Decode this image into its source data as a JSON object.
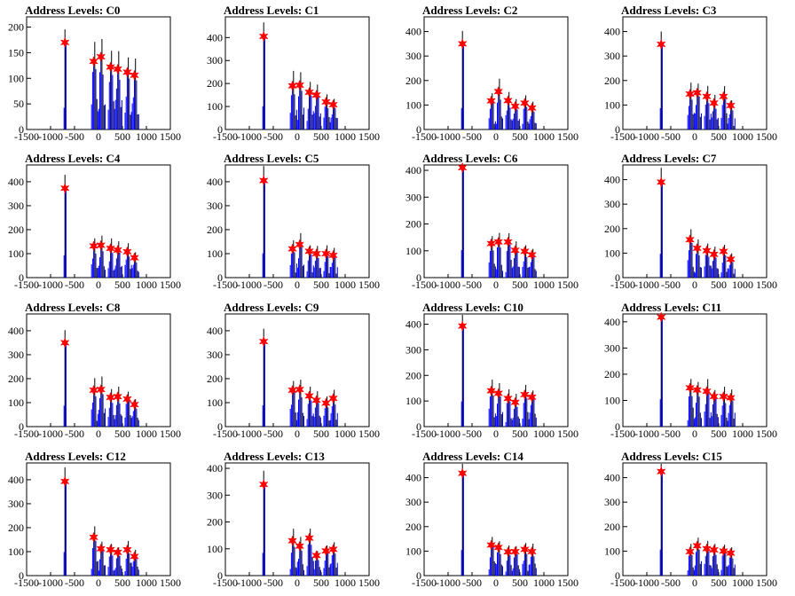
{
  "colors": {
    "histogram_main": "#0000ff",
    "histogram_dark": "#000000",
    "marker": "#ff0000",
    "frame": "#000000"
  },
  "x_ticks": [
    -1500,
    -1000,
    -500,
    0,
    500,
    1000,
    1500
  ],
  "xlim": [
    -1500,
    1500
  ],
  "chart_data": [
    {
      "type": "bar",
      "title": "Address Levels: C0",
      "xlim": [
        -1500,
        1500
      ],
      "ylim": [
        0,
        220
      ],
      "yticks": [
        0,
        50,
        100,
        150,
        200
      ],
      "series": [
        {
          "name": "",
          "x": [
            -700,
            -100,
            50,
            250,
            400,
            600,
            750
          ],
          "values": [
            170,
            133,
            142,
            122,
            118,
            112,
            106
          ]
        }
      ]
    },
    {
      "type": "bar",
      "title": "Address Levels: C1",
      "xlim": [
        -1500,
        1500
      ],
      "ylim": [
        0,
        490
      ],
      "yticks": [
        0,
        100,
        200,
        300,
        400
      ],
      "series": [
        {
          "name": "",
          "x": [
            -700,
            -100,
            50,
            250,
            400,
            600,
            750
          ],
          "values": [
            405,
            190,
            193,
            162,
            150,
            120,
            108
          ]
        }
      ]
    },
    {
      "type": "bar",
      "title": "Address Levels: C2",
      "xlim": [
        -1500,
        1500
      ],
      "ylim": [
        0,
        460
      ],
      "yticks": [
        0,
        100,
        200,
        300,
        400
      ],
      "series": [
        {
          "name": "",
          "x": [
            -700,
            -100,
            50,
            250,
            400,
            600,
            750
          ],
          "values": [
            350,
            117,
            155,
            118,
            95,
            108,
            88
          ]
        }
      ]
    },
    {
      "type": "bar",
      "title": "Address Levels: C3",
      "xlim": [
        -1500,
        1500
      ],
      "ylim": [
        0,
        460
      ],
      "yticks": [
        0,
        100,
        200,
        300,
        400
      ],
      "series": [
        {
          "name": "",
          "x": [
            -700,
            -100,
            50,
            250,
            400,
            600,
            750
          ],
          "values": [
            348,
            145,
            150,
            135,
            108,
            135,
            98
          ]
        }
      ]
    },
    {
      "type": "bar",
      "title": "Address Levels: C4",
      "xlim": [
        -1500,
        1500
      ],
      "ylim": [
        0,
        470
      ],
      "yticks": [
        0,
        100,
        200,
        300,
        400
      ],
      "series": [
        {
          "name": "",
          "x": [
            -700,
            -100,
            50,
            250,
            400,
            600,
            750
          ],
          "values": [
            373,
            132,
            135,
            122,
            115,
            108,
            83
          ]
        }
      ]
    },
    {
      "type": "bar",
      "title": "Address Levels: C5",
      "xlim": [
        -1500,
        1500
      ],
      "ylim": [
        0,
        470
      ],
      "yticks": [
        0,
        100,
        200,
        300,
        400
      ],
      "series": [
        {
          "name": "",
          "x": [
            -700,
            -100,
            50,
            250,
            400,
            600,
            750
          ],
          "values": [
            405,
            120,
            138,
            110,
            100,
            100,
            93
          ]
        }
      ]
    },
    {
      "type": "bar",
      "title": "Address Levels: C6",
      "xlim": [
        -1500,
        1500
      ],
      "ylim": [
        0,
        420
      ],
      "yticks": [
        0,
        100,
        200,
        300,
        400
      ],
      "series": [
        {
          "name": "",
          "x": [
            -700,
            -100,
            50,
            250,
            400,
            600,
            750
          ],
          "values": [
            410,
            127,
            133,
            133,
            102,
            98,
            85
          ]
        }
      ]
    },
    {
      "type": "bar",
      "title": "Address Levels: C7",
      "xlim": [
        -1500,
        1500
      ],
      "ylim": [
        0,
        460
      ],
      "yticks": [
        0,
        100,
        200,
        300,
        400
      ],
      "series": [
        {
          "name": "",
          "x": [
            -700,
            -100,
            50,
            250,
            400,
            600,
            750
          ],
          "values": [
            390,
            155,
            120,
            110,
            95,
            107,
            75
          ]
        }
      ]
    },
    {
      "type": "bar",
      "title": "Address Levels: C8",
      "xlim": [
        -1500,
        1500
      ],
      "ylim": [
        0,
        470
      ],
      "yticks": [
        0,
        100,
        200,
        300,
        400
      ],
      "series": [
        {
          "name": "",
          "x": [
            -700,
            -100,
            50,
            250,
            400,
            600,
            750
          ],
          "values": [
            350,
            152,
            155,
            122,
            125,
            115,
            92
          ]
        }
      ]
    },
    {
      "type": "bar",
      "title": "Address Levels: C9",
      "xlim": [
        -1500,
        1500
      ],
      "ylim": [
        0,
        470
      ],
      "yticks": [
        0,
        100,
        200,
        300,
        400
      ],
      "series": [
        {
          "name": "",
          "x": [
            -700,
            -100,
            50,
            250,
            400,
            600,
            750
          ],
          "values": [
            355,
            152,
            155,
            128,
            110,
            98,
            118
          ]
        }
      ]
    },
    {
      "type": "bar",
      "title": "Address Levels: C10",
      "xlim": [
        -1500,
        1500
      ],
      "ylim": [
        0,
        440
      ],
      "yticks": [
        0,
        100,
        200,
        300,
        400
      ],
      "series": [
        {
          "name": "",
          "x": [
            -700,
            -100,
            50,
            250,
            400,
            600,
            750
          ],
          "values": [
            393,
            140,
            130,
            110,
            95,
            125,
            115
          ]
        }
      ]
    },
    {
      "type": "bar",
      "title": "Address Levels: C11",
      "xlim": [
        -1500,
        1500
      ],
      "ylim": [
        0,
        430
      ],
      "yticks": [
        0,
        100,
        200,
        300,
        400
      ],
      "series": [
        {
          "name": "",
          "x": [
            -700,
            -100,
            50,
            250,
            400,
            600,
            750
          ],
          "values": [
            418,
            148,
            140,
            135,
            115,
            115,
            110
          ]
        }
      ]
    },
    {
      "type": "bar",
      "title": "Address Levels: C12",
      "xlim": [
        -1500,
        1500
      ],
      "ylim": [
        0,
        470
      ],
      "yticks": [
        0,
        100,
        200,
        300,
        400
      ],
      "series": [
        {
          "name": "",
          "x": [
            -700,
            -100,
            50,
            250,
            400,
            600,
            750
          ],
          "values": [
            393,
            160,
            112,
            108,
            97,
            108,
            80
          ]
        }
      ]
    },
    {
      "type": "bar",
      "title": "Address Levels: C13",
      "xlim": [
        -1500,
        1500
      ],
      "ylim": [
        0,
        420
      ],
      "yticks": [
        0,
        100,
        200,
        300,
        400
      ],
      "series": [
        {
          "name": "",
          "x": [
            -700,
            -100,
            50,
            250,
            400,
            600,
            750
          ],
          "values": [
            340,
            130,
            110,
            140,
            75,
            92,
            98
          ]
        }
      ]
    },
    {
      "type": "bar",
      "title": "Address Levels: C14",
      "xlim": [
        -1500,
        1500
      ],
      "ylim": [
        0,
        460
      ],
      "yticks": [
        0,
        100,
        200,
        300,
        400
      ],
      "series": [
        {
          "name": "",
          "x": [
            -700,
            -100,
            50,
            250,
            400,
            600,
            750
          ],
          "values": [
            418,
            125,
            115,
            97,
            98,
            107,
            98
          ]
        }
      ]
    },
    {
      "type": "bar",
      "title": "Address Levels: C15",
      "xlim": [
        -1500,
        1500
      ],
      "ylim": [
        0,
        460
      ],
      "yticks": [
        0,
        100,
        200,
        300,
        400
      ],
      "series": [
        {
          "name": "",
          "x": [
            -700,
            -100,
            50,
            250,
            400,
            600,
            750
          ],
          "values": [
            425,
            98,
            122,
            110,
            105,
            100,
            92
          ]
        }
      ]
    }
  ]
}
